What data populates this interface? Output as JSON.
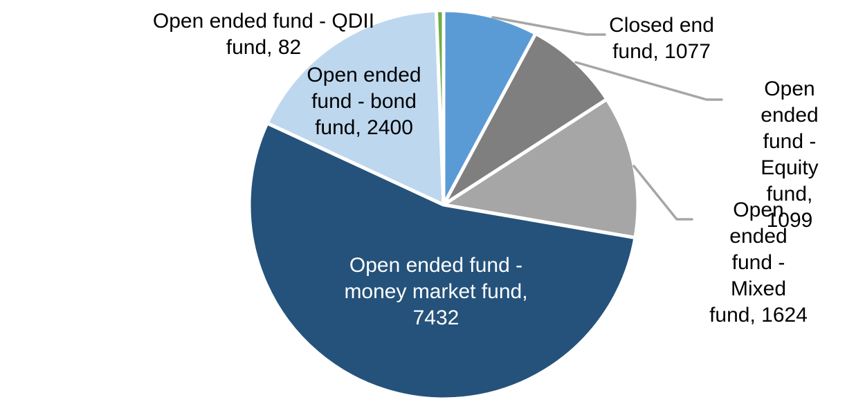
{
  "chart_data": {
    "type": "pie",
    "title": "",
    "legend": "none",
    "background": "#FFFFFF",
    "direction": "clockwise",
    "start_angle_deg": 0,
    "total": 13714,
    "leader_line_color": "#A6A6A6",
    "slice_gap_color": "#FFFFFF",
    "slices": [
      {
        "id": "closed-end-fund",
        "label": "Closed end fund",
        "value": 1077,
        "color": "#5B9BD5",
        "label_display": "Closed end\nfund, 1077",
        "label_placement": "outside",
        "label_color": "#000000"
      },
      {
        "id": "open-ended-equity-fund",
        "label": "Open ended fund - Equity fund",
        "value": 1099,
        "color": "#7F7F7F",
        "label_display": "Open ended\nfund - Equity\nfund, 1099",
        "label_placement": "outside",
        "label_color": "#000000"
      },
      {
        "id": "open-ended-mixed-fund",
        "label": "Open ended fund - Mixed fund",
        "value": 1624,
        "color": "#A6A6A6",
        "label_display": "Open ended\nfund - Mixed\nfund, 1624",
        "label_placement": "outside",
        "label_color": "#000000"
      },
      {
        "id": "open-ended-money-market-fund",
        "label": "Open ended fund - money market fund",
        "value": 7432,
        "color": "#24527B",
        "label_display": "Open ended fund -\nmoney market fund,\n7432",
        "label_placement": "inside",
        "label_color": "#FFFFFF"
      },
      {
        "id": "open-ended-bond-fund",
        "label": "Open ended fund - bond fund",
        "value": 2400,
        "color": "#BDD7EE",
        "label_display": "Open ended\nfund - bond\nfund, 2400",
        "label_placement": "inside",
        "label_color": "#000000"
      },
      {
        "id": "open-ended-qdii-fund",
        "label": "Open ended fund - QDII fund",
        "value": 82,
        "color": "#70AD47",
        "label_display": "Open ended fund - QDII\nfund, 82",
        "label_placement": "outside",
        "label_color": "#000000"
      }
    ]
  }
}
